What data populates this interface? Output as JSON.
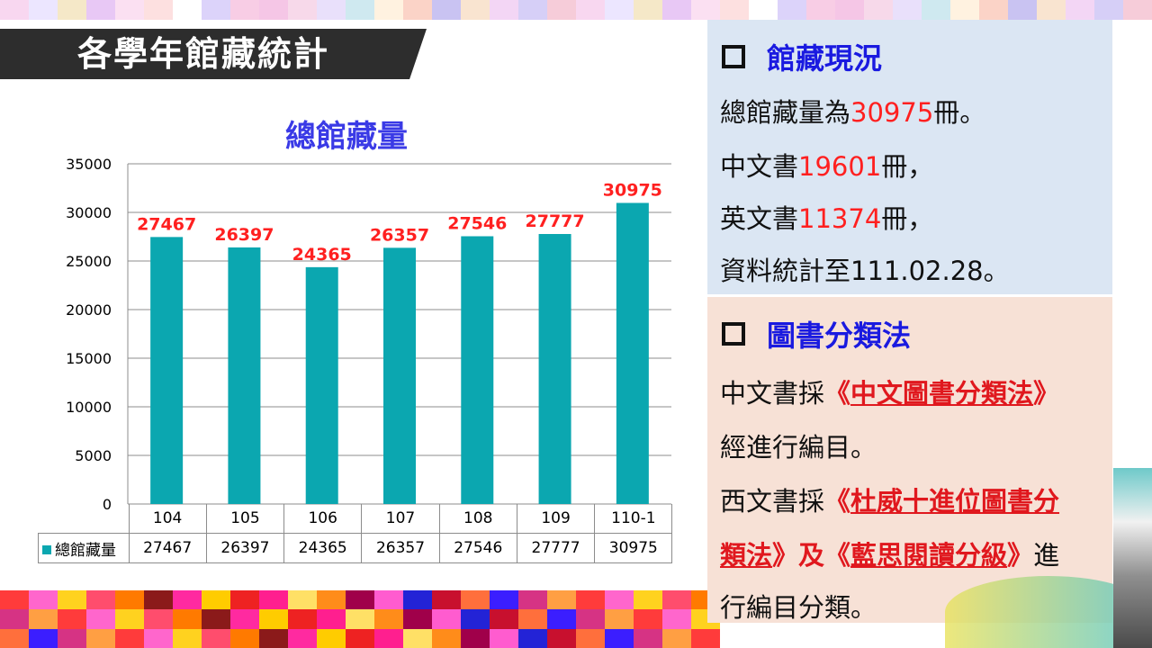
{
  "slide": {
    "title": "各學年館藏統計"
  },
  "chart_data": {
    "type": "bar",
    "title": "總館藏量",
    "categories": [
      "104",
      "105",
      "106",
      "107",
      "108",
      "109",
      "110-1"
    ],
    "series": [
      {
        "name": "總館藏量",
        "values": [
          27467,
          26397,
          24365,
          26357,
          27546,
          27777,
          30975
        ],
        "color": "#0ba7b0"
      }
    ],
    "ylim": [
      0,
      35000
    ],
    "yticks": [
      0,
      5000,
      10000,
      15000,
      20000,
      25000,
      30000,
      35000
    ],
    "grid": true,
    "data_labels": true,
    "data_label_color": "#ff2020",
    "data_table": true
  },
  "holdings_panel": {
    "heading": "館藏現況",
    "line1": {
      "prefix": "總館藏量為",
      "value": "30975",
      "suffix": "冊。"
    },
    "line2": {
      "prefix": "中文書",
      "value": "19601",
      "suffix": "冊，"
    },
    "line3": {
      "prefix": "英文書",
      "value": "11374",
      "suffix": "冊，"
    },
    "line4": "資料統計至111.02.28。"
  },
  "classification_panel": {
    "heading": "圖書分類法",
    "line1": {
      "prefix": "中文書採",
      "open": "《",
      "link": "中文圖書分類法",
      "close": "》"
    },
    "line2": "經進行編目。",
    "line3": {
      "prefix": "西文書採",
      "open": "《",
      "link": "杜威十進位圖書分"
    },
    "line4": {
      "link": "類法",
      "mid": "》及《",
      "link2": "藍思閱讀分級",
      "close": "》",
      "suffix": "進"
    },
    "line5": "行編目分類。"
  },
  "colors": {
    "bar": "#0ba7b0",
    "accent_red": "#ff2020",
    "heading_blue": "#1a1ae0",
    "chart_title_blue": "#3a3ae6",
    "panel_top_bg": "#dbe6f3",
    "panel_bottom_bg": "#f7e1d6"
  }
}
